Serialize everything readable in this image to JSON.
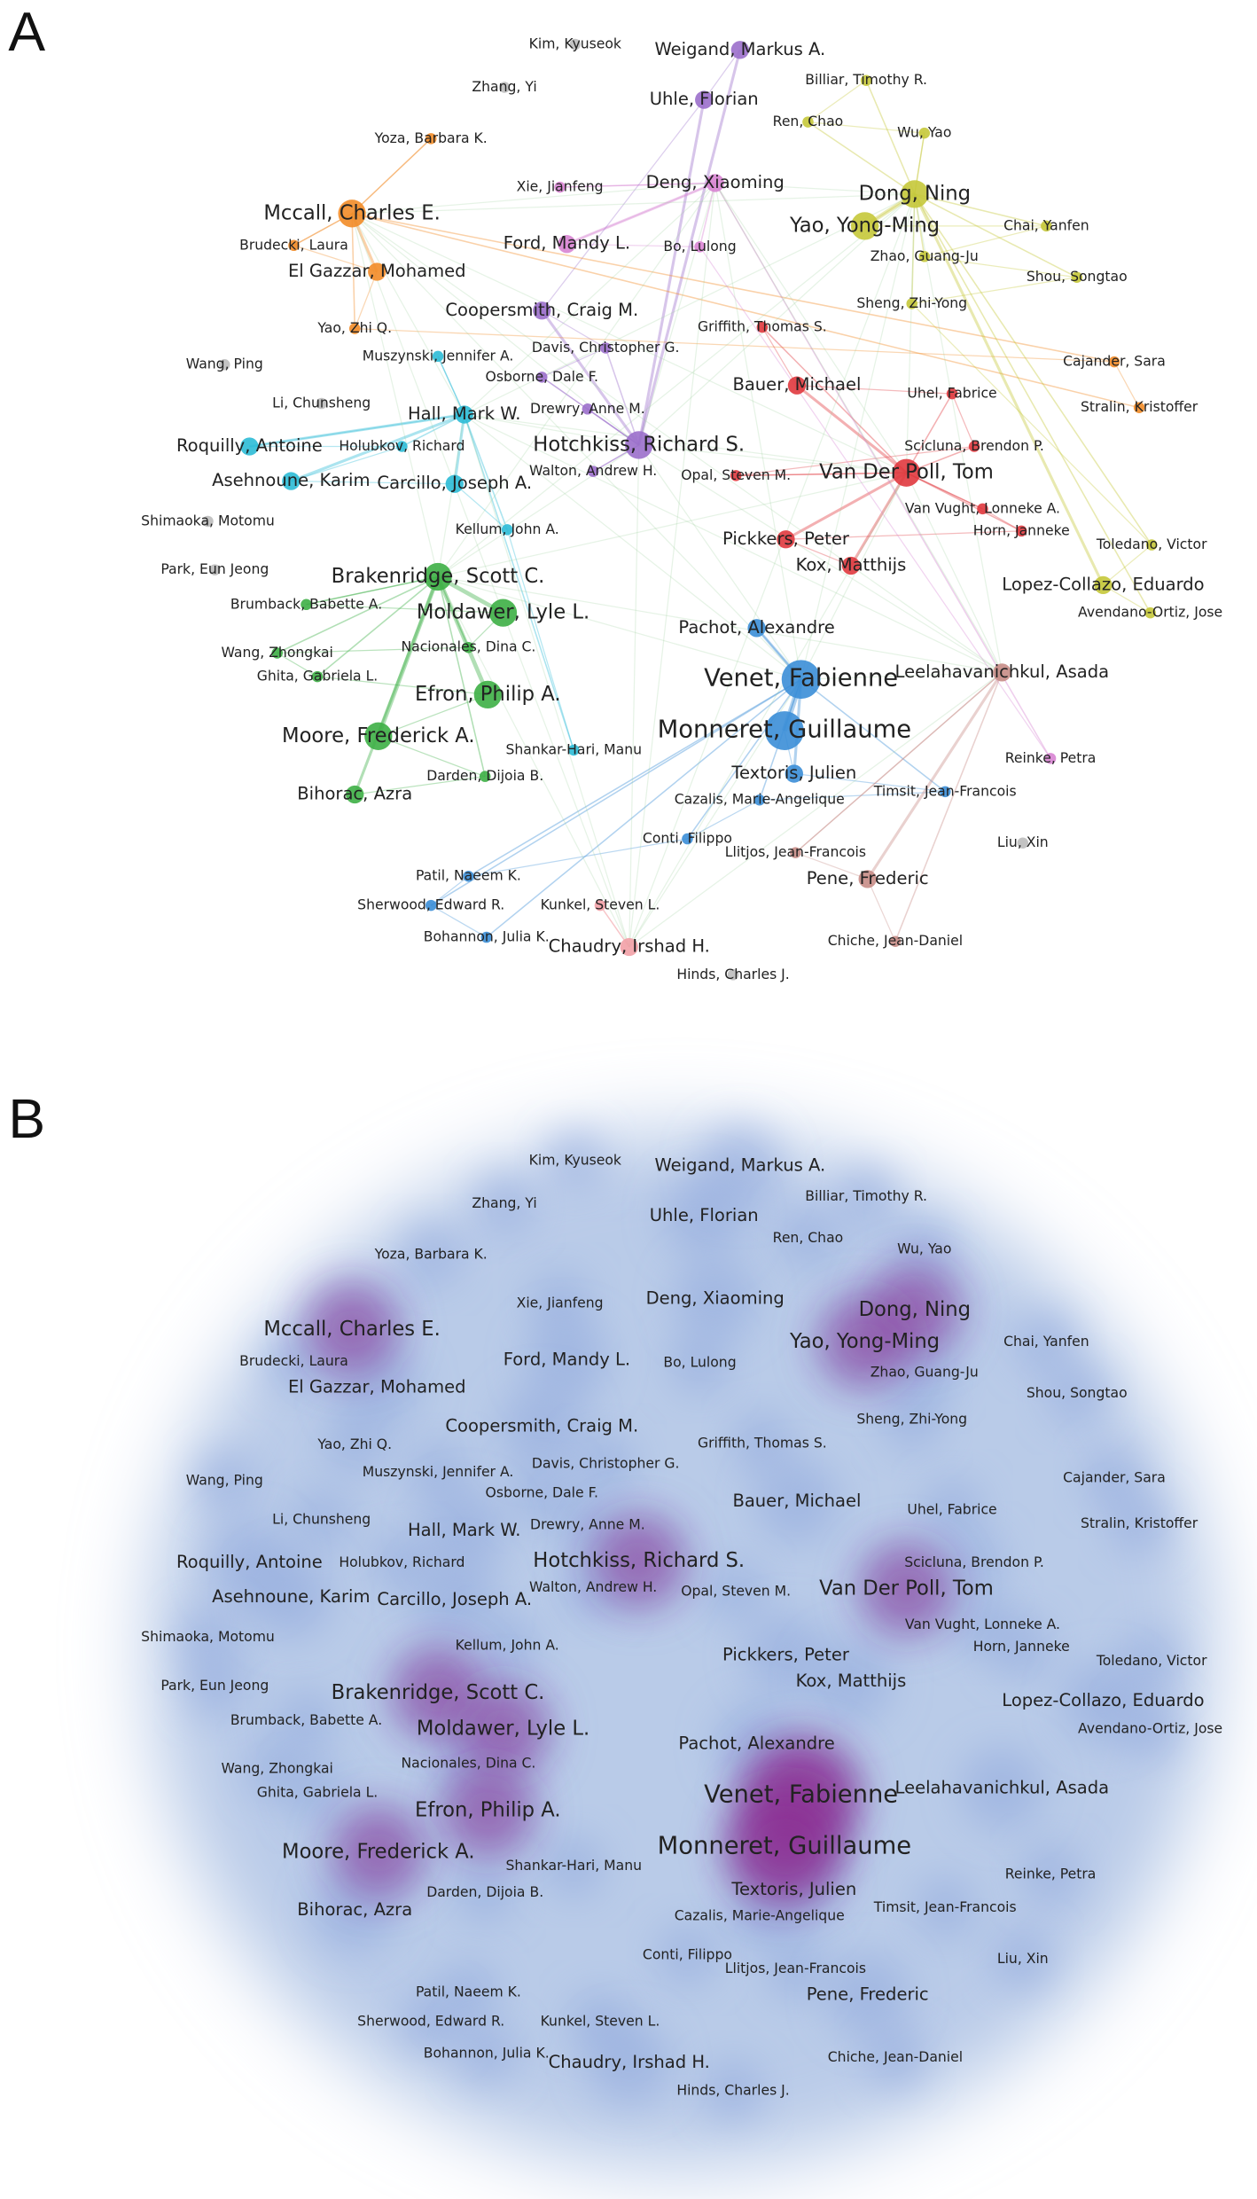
{
  "panels": [
    {
      "label": "A"
    },
    {
      "label": "B"
    }
  ],
  "nodes": [
    {
      "label": "Kim, Kyuseok"
    },
    {
      "label": "Weigand, Markus A."
    },
    {
      "label": "Zhang, Yi"
    },
    {
      "label": "Billiar, Timothy R."
    },
    {
      "label": "Uhle, Florian"
    },
    {
      "label": "Ren, Chao"
    },
    {
      "label": "Wu, Yao"
    },
    {
      "label": "Yoza, Barbara K."
    },
    {
      "label": "Dong, Ning"
    },
    {
      "label": "Xie, Jianfeng"
    },
    {
      "label": "Deng, Xiaoming"
    },
    {
      "label": "Mccall, Charles E."
    },
    {
      "label": "Yao, Yong-Ming"
    },
    {
      "label": "Chai, Yanfen"
    },
    {
      "label": "Brudecki, Laura"
    },
    {
      "label": "Ford, Mandy L."
    },
    {
      "label": "Bo, Lulong"
    },
    {
      "label": "Zhao, Guang-Ju"
    },
    {
      "label": "El Gazzar, Mohamed"
    },
    {
      "label": "Shou, Songtao"
    },
    {
      "label": "Sheng, Zhi-Yong"
    },
    {
      "label": "Coopersmith, Craig M."
    },
    {
      "label": "Yao, Zhi Q."
    },
    {
      "label": "Griffith, Thomas S."
    },
    {
      "label": "Davis, Christopher G."
    },
    {
      "label": "Wang, Ping"
    },
    {
      "label": "Muszynski, Jennifer A."
    },
    {
      "label": "Cajander, Sara"
    },
    {
      "label": "Osborne, Dale F."
    },
    {
      "label": "Bauer, Michael"
    },
    {
      "label": "Uhel, Fabrice"
    },
    {
      "label": "Li, Chunsheng"
    },
    {
      "label": "Drewry, Anne M."
    },
    {
      "label": "Stralin, Kristoffer"
    },
    {
      "label": "Hall, Mark W."
    },
    {
      "label": "Roquilly, Antoine"
    },
    {
      "label": "Holubkov, Richard"
    },
    {
      "label": "Hotchkiss, Richard S."
    },
    {
      "label": "Scicluna, Brendon P."
    },
    {
      "label": "Walton, Andrew H."
    },
    {
      "label": "Opal, Steven M."
    },
    {
      "label": "Van Der Poll, Tom"
    },
    {
      "label": "Asehnoune, Karim"
    },
    {
      "label": "Carcillo, Joseph A."
    },
    {
      "label": "Van Vught, Lonneke A."
    },
    {
      "label": "Shimaoka, Motomu"
    },
    {
      "label": "Kellum, John A."
    },
    {
      "label": "Horn, Janneke"
    },
    {
      "label": "Pickkers, Peter"
    },
    {
      "label": "Toledano, Victor"
    },
    {
      "label": "Park, Eun Jeong"
    },
    {
      "label": "Kox, Matthijs"
    },
    {
      "label": "Brakenridge, Scott C."
    },
    {
      "label": "Lopez-Collazo, Eduardo"
    },
    {
      "label": "Brumback, Babette A."
    },
    {
      "label": "Moldawer, Lyle L."
    },
    {
      "label": "Avendano-Ortiz, Jose"
    },
    {
      "label": "Pachot, Alexandre"
    },
    {
      "label": "Nacionales, Dina C."
    },
    {
      "label": "Wang, Zhongkai"
    },
    {
      "label": "Venet, Fabienne"
    },
    {
      "label": "Leelahavanichkul, Asada"
    },
    {
      "label": "Ghita, Gabriela L."
    },
    {
      "label": "Efron, Philip A."
    },
    {
      "label": "Monneret, Guillaume"
    },
    {
      "label": "Moore, Frederick A."
    },
    {
      "label": "Shankar-Hari, Manu"
    },
    {
      "label": "Textoris, Julien"
    },
    {
      "label": "Reinke, Petra"
    },
    {
      "label": "Darden, Dijoia B."
    },
    {
      "label": "Timsit, Jean-Francois"
    },
    {
      "label": "Cazalis, Marie-Angelique"
    },
    {
      "label": "Bihorac, Azra"
    },
    {
      "label": "Conti, Filippo"
    },
    {
      "label": "Liu, Xin"
    },
    {
      "label": "Llitjos, Jean-Francois"
    },
    {
      "label": "Pene, Frederic"
    },
    {
      "label": "Patil, Naeem K."
    },
    {
      "label": "Sherwood, Edward R."
    },
    {
      "label": "Kunkel, Steven L."
    },
    {
      "label": "Bohannon, Julia K."
    },
    {
      "label": "Chiche, Jean-Daniel"
    },
    {
      "label": "Chaudry, Irshad H."
    },
    {
      "label": "Hinds, Charles J."
    }
  ]
}
